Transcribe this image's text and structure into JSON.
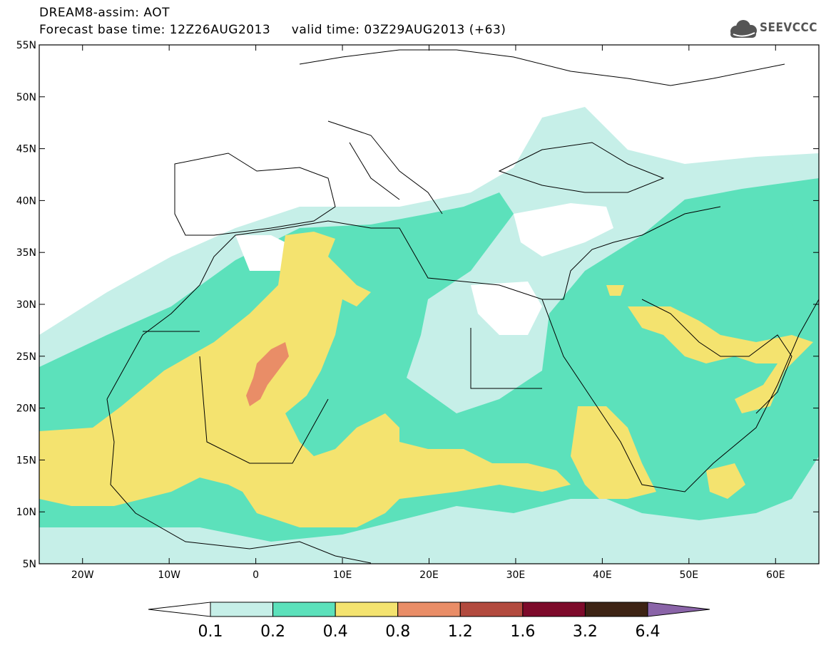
{
  "header": {
    "title": "DREAM8-assim: AOT",
    "base_time_label": "Forecast base time: 12Z26AUG2013",
    "valid_time_label": "valid time: 03Z29AUG2013 (+63)",
    "logo_text": "SEEVCCC"
  },
  "map": {
    "lon_range": [
      -25,
      65
    ],
    "lat_range": [
      5,
      55
    ],
    "lat_ticks": [
      "5N",
      "10N",
      "15N",
      "20N",
      "25N",
      "30N",
      "35N",
      "40N",
      "45N",
      "50N",
      "55N"
    ],
    "lon_ticks": [
      "20W",
      "10W",
      "0",
      "10E",
      "20E",
      "30E",
      "40E",
      "50E",
      "60E"
    ],
    "background_color": "#ffffff",
    "coastline_color": "#000000"
  },
  "colorbar": {
    "thresholds": [
      "0.1",
      "0.2",
      "0.4",
      "0.8",
      "1.2",
      "1.6",
      "3.2",
      "6.4"
    ],
    "colors": [
      "#ffffff",
      "#c6efe8",
      "#5ce1bb",
      "#f4e36f",
      "#e98d67",
      "#b24a3e",
      "#7d0a2a",
      "#3d2314",
      "#8a64a8"
    ]
  },
  "legend_colors": {
    "lt_0.1": "#ffffff",
    "0.1_0.2": "#c6efe8",
    "0.2_0.4": "#5ce1bb",
    "0.4_0.8": "#f4e36f",
    "0.8_1.2": "#e98d67"
  }
}
